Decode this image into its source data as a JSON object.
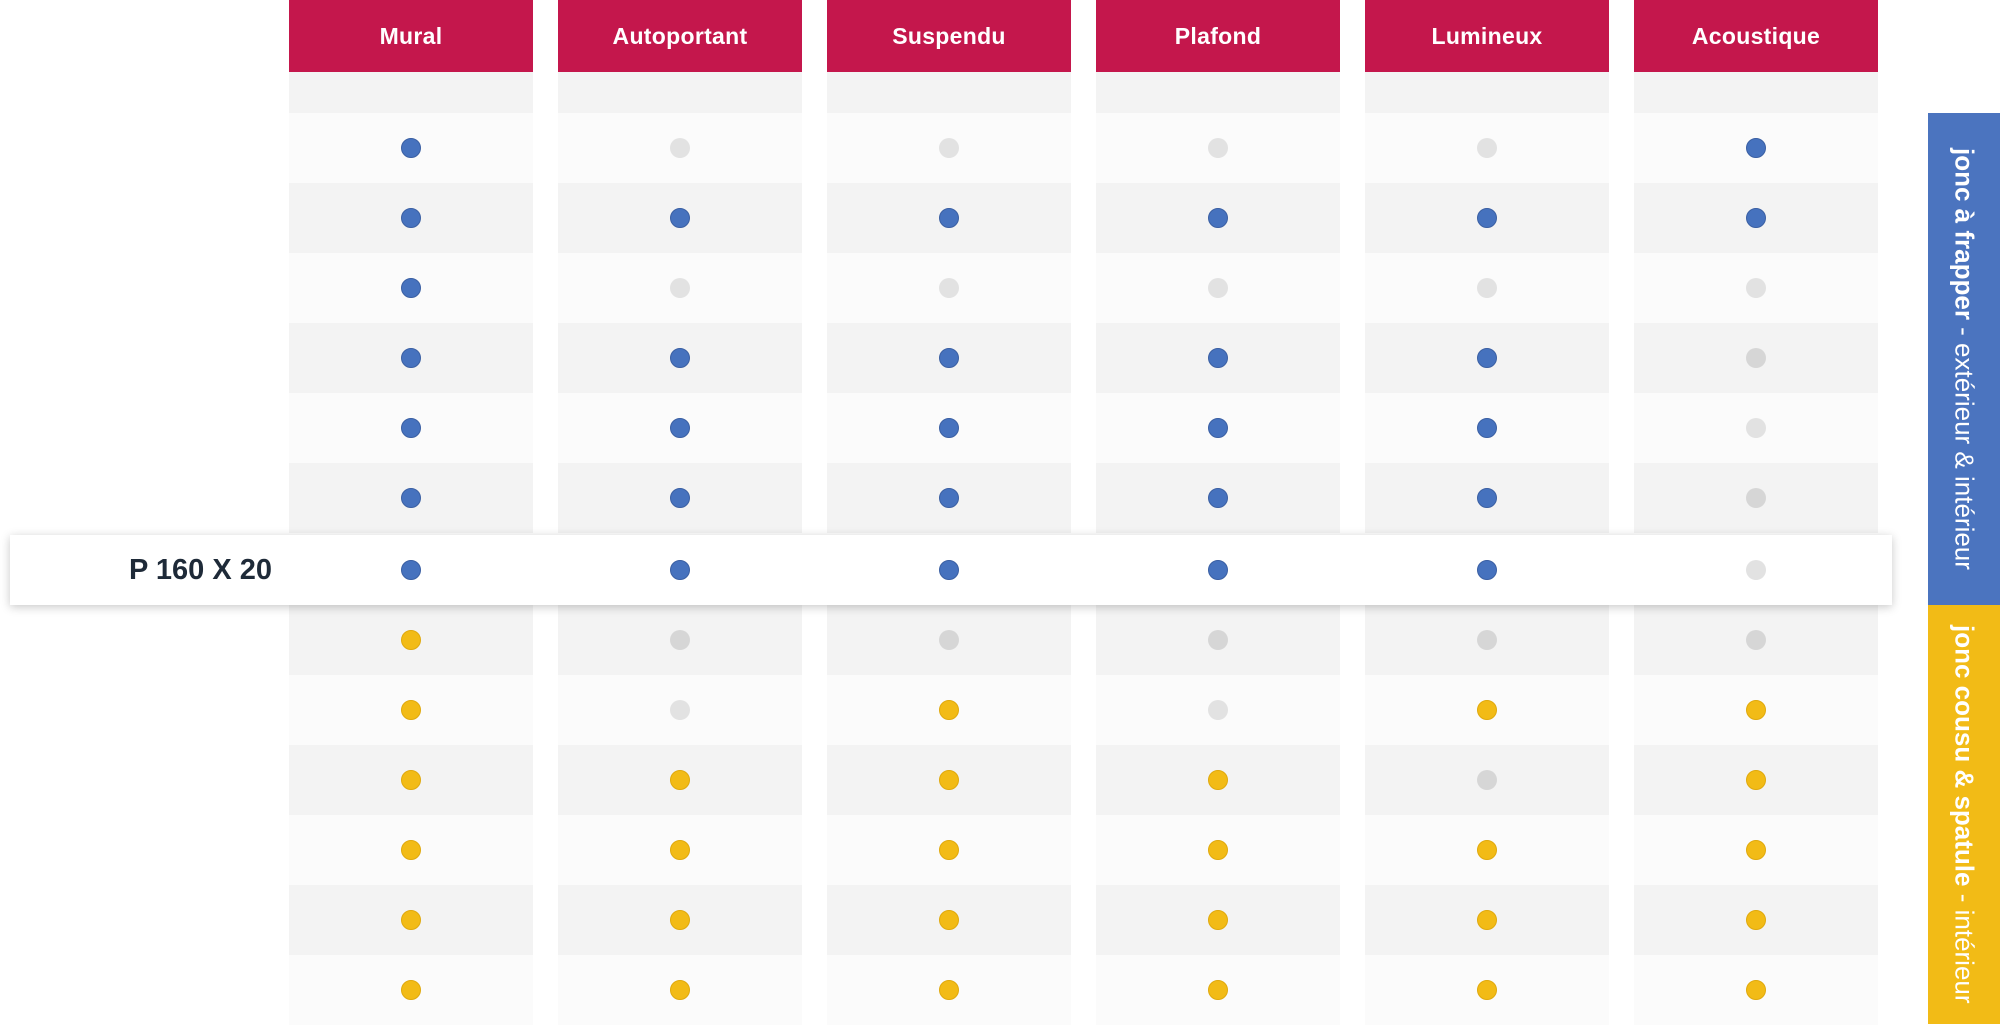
{
  "columns": [
    "Mural",
    "Autoportant",
    "Suspendu",
    "Plafond",
    "Lumineux",
    "Acoustique"
  ],
  "highlight_row": {
    "label": "P 160 X 20",
    "row_index": 7
  },
  "rows": [
    {
      "group": "header-spacer",
      "values": [
        null,
        null,
        null,
        null,
        null,
        null
      ]
    },
    {
      "group": "frapper",
      "values": [
        1,
        0,
        0,
        0,
        0,
        1
      ]
    },
    {
      "group": "frapper",
      "values": [
        1,
        1,
        1,
        1,
        1,
        1
      ]
    },
    {
      "group": "frapper",
      "values": [
        1,
        0,
        0,
        0,
        0,
        0
      ]
    },
    {
      "group": "frapper",
      "values": [
        1,
        1,
        1,
        1,
        1,
        0
      ]
    },
    {
      "group": "frapper",
      "values": [
        1,
        1,
        1,
        1,
        1,
        0
      ]
    },
    {
      "group": "frapper",
      "values": [
        1,
        1,
        1,
        1,
        1,
        0
      ]
    },
    {
      "group": "frapper",
      "values": [
        1,
        1,
        1,
        1,
        1,
        0
      ]
    },
    {
      "group": "cousu",
      "values": [
        1,
        0,
        0,
        0,
        0,
        0
      ]
    },
    {
      "group": "cousu",
      "values": [
        1,
        0,
        1,
        0,
        1,
        1
      ]
    },
    {
      "group": "cousu",
      "values": [
        1,
        1,
        1,
        1,
        0,
        1
      ]
    },
    {
      "group": "cousu",
      "values": [
        1,
        1,
        1,
        1,
        1,
        1
      ]
    },
    {
      "group": "cousu",
      "values": [
        1,
        1,
        1,
        1,
        1,
        1
      ]
    },
    {
      "group": "cousu",
      "values": [
        1,
        1,
        1,
        1,
        1,
        1
      ]
    }
  ],
  "side_bands": {
    "frapper": {
      "bold": "jonc à frapper",
      "light": " - extérieur & intérieur",
      "color": "#4b74bf"
    },
    "cousu": {
      "bold": "jonc cousu & spatule",
      "light": " - intérieur",
      "color": "#f2bb16"
    }
  },
  "colors": {
    "header": "#c4174c",
    "dot_blue": "#4672be",
    "dot_yellow": "#f2bb16",
    "dot_off": "#e2e2e2"
  }
}
